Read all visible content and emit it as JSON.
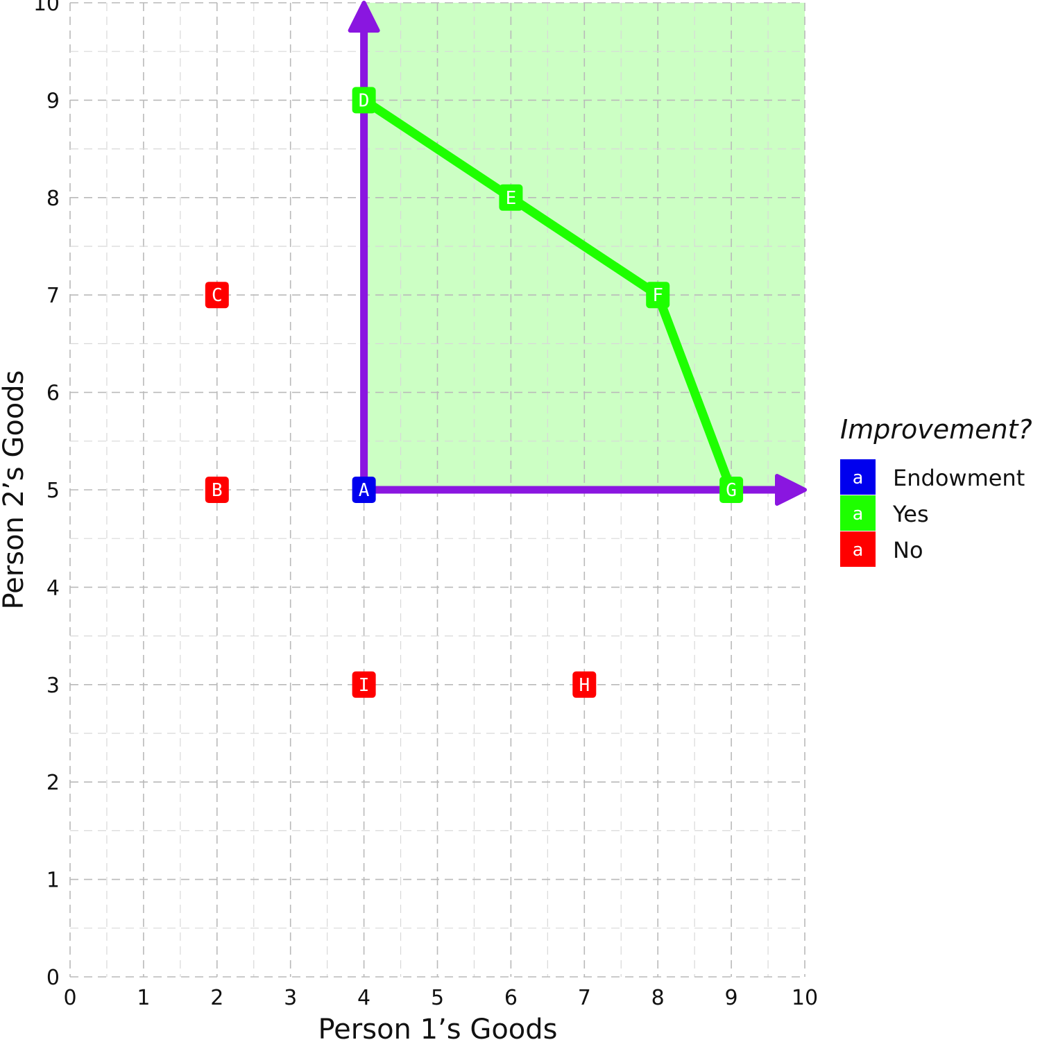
{
  "chart_data": {
    "type": "scatter",
    "xlabel": "Person 1’s Goods",
    "ylabel": "Person 2’s Goods",
    "xlim": [
      0,
      10
    ],
    "ylim": [
      0,
      10
    ],
    "xticks": [
      "0",
      "1",
      "2",
      "3",
      "4",
      "5",
      "6",
      "7",
      "8",
      "9",
      "10"
    ],
    "yticks": [
      "0",
      "1",
      "2",
      "3",
      "4",
      "5",
      "6",
      "7",
      "8",
      "9",
      "10"
    ],
    "grid": true,
    "shaded_region": {
      "x": [
        4,
        10
      ],
      "y": [
        5,
        10
      ],
      "color": "#ccffc4"
    },
    "arrows": [
      {
        "from": [
          4,
          5
        ],
        "to": [
          4,
          10
        ],
        "color": "#8a16e0"
      },
      {
        "from": [
          4,
          5
        ],
        "to": [
          10,
          5
        ],
        "color": "#8a16e0"
      }
    ],
    "frontier_line": {
      "points": [
        [
          4,
          9
        ],
        [
          6,
          8
        ],
        [
          8,
          7
        ],
        [
          9,
          5
        ]
      ],
      "color": "#1eff00"
    },
    "points": [
      {
        "label": "A",
        "x": 4,
        "y": 5,
        "category": "Endowment"
      },
      {
        "label": "B",
        "x": 2,
        "y": 5,
        "category": "No"
      },
      {
        "label": "C",
        "x": 2,
        "y": 7,
        "category": "No"
      },
      {
        "label": "D",
        "x": 4,
        "y": 9,
        "category": "Yes"
      },
      {
        "label": "E",
        "x": 6,
        "y": 8,
        "category": "Yes"
      },
      {
        "label": "F",
        "x": 8,
        "y": 7,
        "category": "Yes"
      },
      {
        "label": "G",
        "x": 9,
        "y": 5,
        "category": "Yes"
      },
      {
        "label": "H",
        "x": 7,
        "y": 3,
        "category": "No"
      },
      {
        "label": "I",
        "x": 4,
        "y": 3,
        "category": "No"
      }
    ],
    "legend": {
      "title": "Improvement?",
      "position": "right",
      "key_glyph": "a",
      "entries": [
        {
          "name": "Endowment",
          "color": "#0000ee"
        },
        {
          "name": "Yes",
          "color": "#1eff00"
        },
        {
          "name": "No",
          "color": "#ff0000"
        }
      ]
    }
  }
}
